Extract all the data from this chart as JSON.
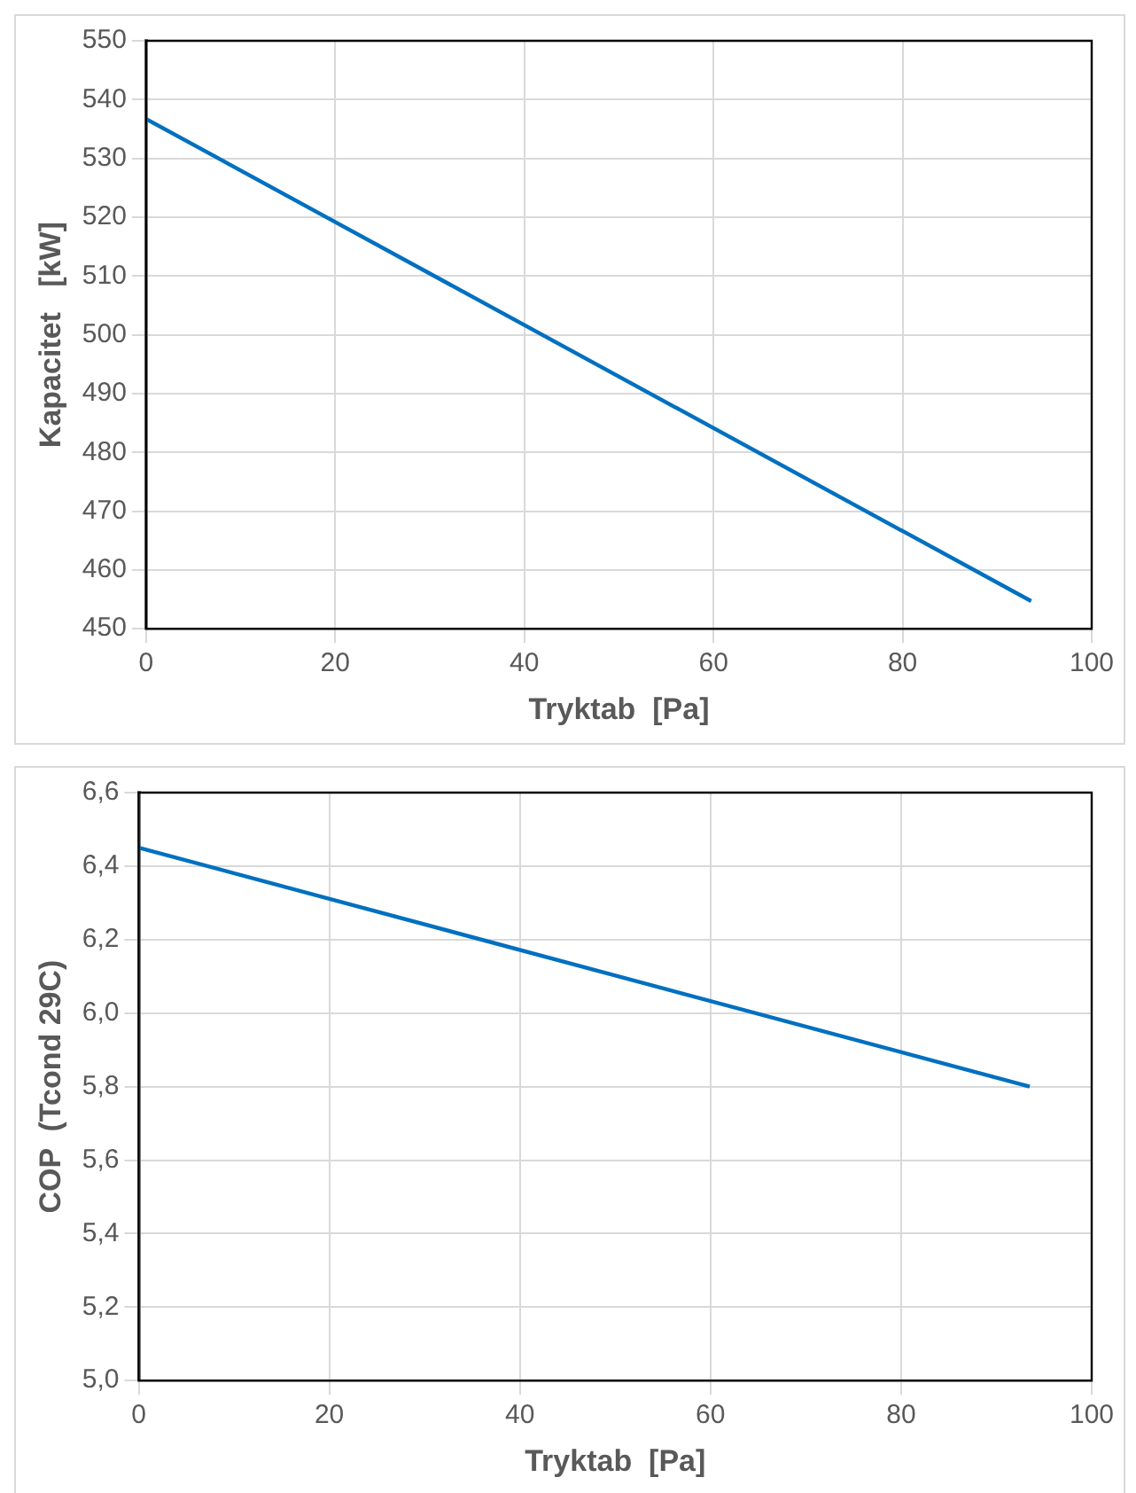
{
  "chart_data": [
    {
      "type": "line",
      "xlabel": "Tryktab  [Pa]",
      "ylabel": "Kapacitet   [kW]",
      "x": [
        0,
        93.6
      ],
      "series": [
        {
          "color": "#0070c0",
          "values": [
            536.7,
            454.7
          ]
        }
      ],
      "xlim": [
        0,
        100
      ],
      "xticks": [
        0,
        20,
        40,
        60,
        80,
        100
      ],
      "ylim": [
        450,
        550
      ],
      "yticks": [
        450,
        460,
        470,
        480,
        490,
        500,
        510,
        520,
        530,
        540,
        550
      ],
      "grid": true,
      "legend": false,
      "marker": "none",
      "line_style": "solid"
    },
    {
      "type": "line",
      "xlabel": "Tryktab  [Pa]",
      "ylabel": "COP  (Tcond 29C)",
      "x": [
        0,
        93.5
      ],
      "series": [
        {
          "color": "#0070c0",
          "values": [
            6.45,
            5.8
          ]
        }
      ],
      "xlim": [
        0,
        100
      ],
      "xticks": [
        0,
        20,
        40,
        60,
        80,
        100
      ],
      "ylim": [
        5.0,
        6.6
      ],
      "yticks": [
        {
          "value": 5.0,
          "label": "5,0"
        },
        {
          "value": 5.2,
          "label": "5,2"
        },
        {
          "value": 5.4,
          "label": "5,4"
        },
        {
          "value": 5.6,
          "label": "5,6"
        },
        {
          "value": 5.8,
          "label": "5,8"
        },
        {
          "value": 6.0,
          "label": "6,0"
        },
        {
          "value": 6.2,
          "label": "6,2"
        },
        {
          "value": 6.4,
          "label": "6,4"
        },
        {
          "value": 6.6,
          "label": "6,6"
        }
      ],
      "grid": true,
      "legend": false,
      "marker": "none",
      "line_style": "solid"
    }
  ]
}
